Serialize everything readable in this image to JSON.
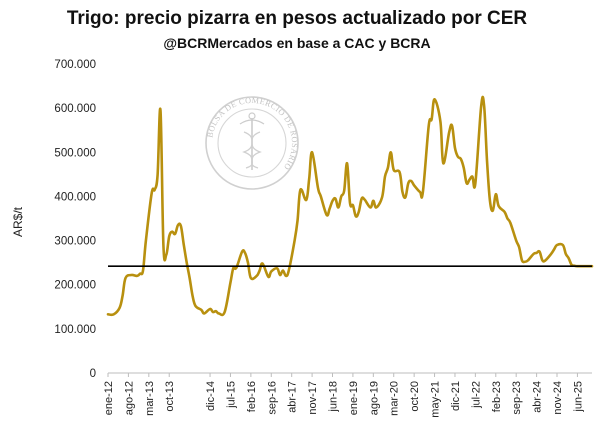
{
  "chart_data": {
    "type": "line",
    "title": "Trigo: precio pizarra en pesos actualizado por CER",
    "subtitle": "@BCRMercados en base a CAC y BCRA",
    "xlabel": "",
    "ylabel": "AR$/t",
    "ylim": [
      0,
      700000
    ],
    "y_ticks": [
      "700.000",
      "600.000",
      "500.000",
      "400.000",
      "300.000",
      "200.000",
      "100.000",
      "0"
    ],
    "y_tick_values": [
      700000,
      600000,
      500000,
      400000,
      300000,
      200000,
      100000,
      0
    ],
    "x_ticks": [
      "ene-12",
      "ago-12",
      "mar-13",
      "oct-13",
      "dic-14",
      "jul-15",
      "feb-16",
      "sep-16",
      "abr-17",
      "nov-17",
      "jun-18",
      "ene-19",
      "ago-19",
      "mar-20",
      "oct-20",
      "may-21",
      "dic-21",
      "jul-22",
      "feb-23",
      "sep-23",
      "abr-24",
      "nov-24",
      "jun-25"
    ],
    "x_tick_index": [
      0,
      7,
      14,
      21,
      35,
      42,
      49,
      56,
      63,
      70,
      77,
      84,
      91,
      98,
      105,
      112,
      119,
      126,
      133,
      140,
      147,
      154,
      161
    ],
    "grid": false,
    "legend": "none",
    "series": [
      {
        "color": "#b8900f",
        "x": [
          0,
          2,
          4,
          5,
          6,
          8,
          10,
          11,
          12,
          13,
          15,
          16,
          17,
          18,
          19,
          20,
          21,
          22,
          23,
          24,
          25,
          26,
          27,
          28,
          29,
          30,
          32,
          33,
          35,
          36,
          37,
          38,
          40,
          42,
          43,
          44,
          46,
          47,
          48,
          49,
          51,
          52,
          53,
          55,
          56,
          58,
          59,
          60,
          61,
          62,
          64,
          65,
          66,
          68,
          69,
          70,
          72,
          73,
          75,
          76,
          77,
          78,
          79,
          80,
          81,
          82,
          83,
          84,
          85,
          86,
          87,
          88,
          90,
          91,
          92,
          94,
          95,
          96,
          97,
          98,
          100,
          101,
          102,
          103,
          104,
          105,
          107,
          108,
          110,
          111,
          112,
          114,
          115,
          117,
          118,
          119,
          120,
          121,
          122,
          123,
          124,
          125,
          126,
          128,
          129,
          130,
          131,
          132,
          133,
          134,
          136,
          137,
          138,
          140,
          141,
          142,
          143,
          144,
          146,
          147,
          148,
          149,
          150,
          152,
          153,
          154,
          156,
          157,
          158,
          159,
          160,
          161,
          163,
          164,
          165,
          166
        ],
        "y": [
          133000,
          133000,
          148000,
          175000,
          215000,
          222000,
          220000,
          225000,
          232000,
          300000,
          408000,
          415000,
          448000,
          595000,
          290000,
          268000,
          310000,
          320000,
          315000,
          335000,
          333000,
          290000,
          250000,
          215000,
          175000,
          152000,
          143000,
          135000,
          145000,
          138000,
          140000,
          135000,
          138000,
          205000,
          238000,
          238000,
          275000,
          272000,
          250000,
          215000,
          220000,
          232000,
          248000,
          218000,
          230000,
          237000,
          222000,
          232000,
          220000,
          232000,
          300000,
          345000,
          415000,
          392000,
          440000,
          500000,
          420000,
          400000,
          358000,
          372000,
          390000,
          395000,
          375000,
          400000,
          413000,
          475000,
          385000,
          380000,
          355000,
          365000,
          395000,
          393000,
          375000,
          390000,
          375000,
          398000,
          445000,
          465000,
          500000,
          460000,
          455000,
          410000,
          398000,
          430000,
          435000,
          425000,
          410000,
          410000,
          560000,
          575000,
          620000,
          570000,
          475000,
          545000,
          560000,
          510000,
          490000,
          485000,
          465000,
          430000,
          438000,
          445000,
          430000,
          605000,
          605000,
          480000,
          390000,
          368000,
          405000,
          378000,
          365000,
          350000,
          340000,
          300000,
          285000,
          255000,
          252000,
          255000,
          270000,
          272000,
          275000,
          255000,
          255000,
          270000,
          280000,
          290000,
          290000,
          270000,
          260000,
          245000,
          243000,
          242000,
          242000,
          242000,
          242000,
          242000
        ],
        "note": ""
      }
    ],
    "reference_line": {
      "y": 242000,
      "color": "#000000"
    }
  },
  "watermark": {
    "text": "BOLSA DE COMERCIO DE ROSARIO"
  }
}
